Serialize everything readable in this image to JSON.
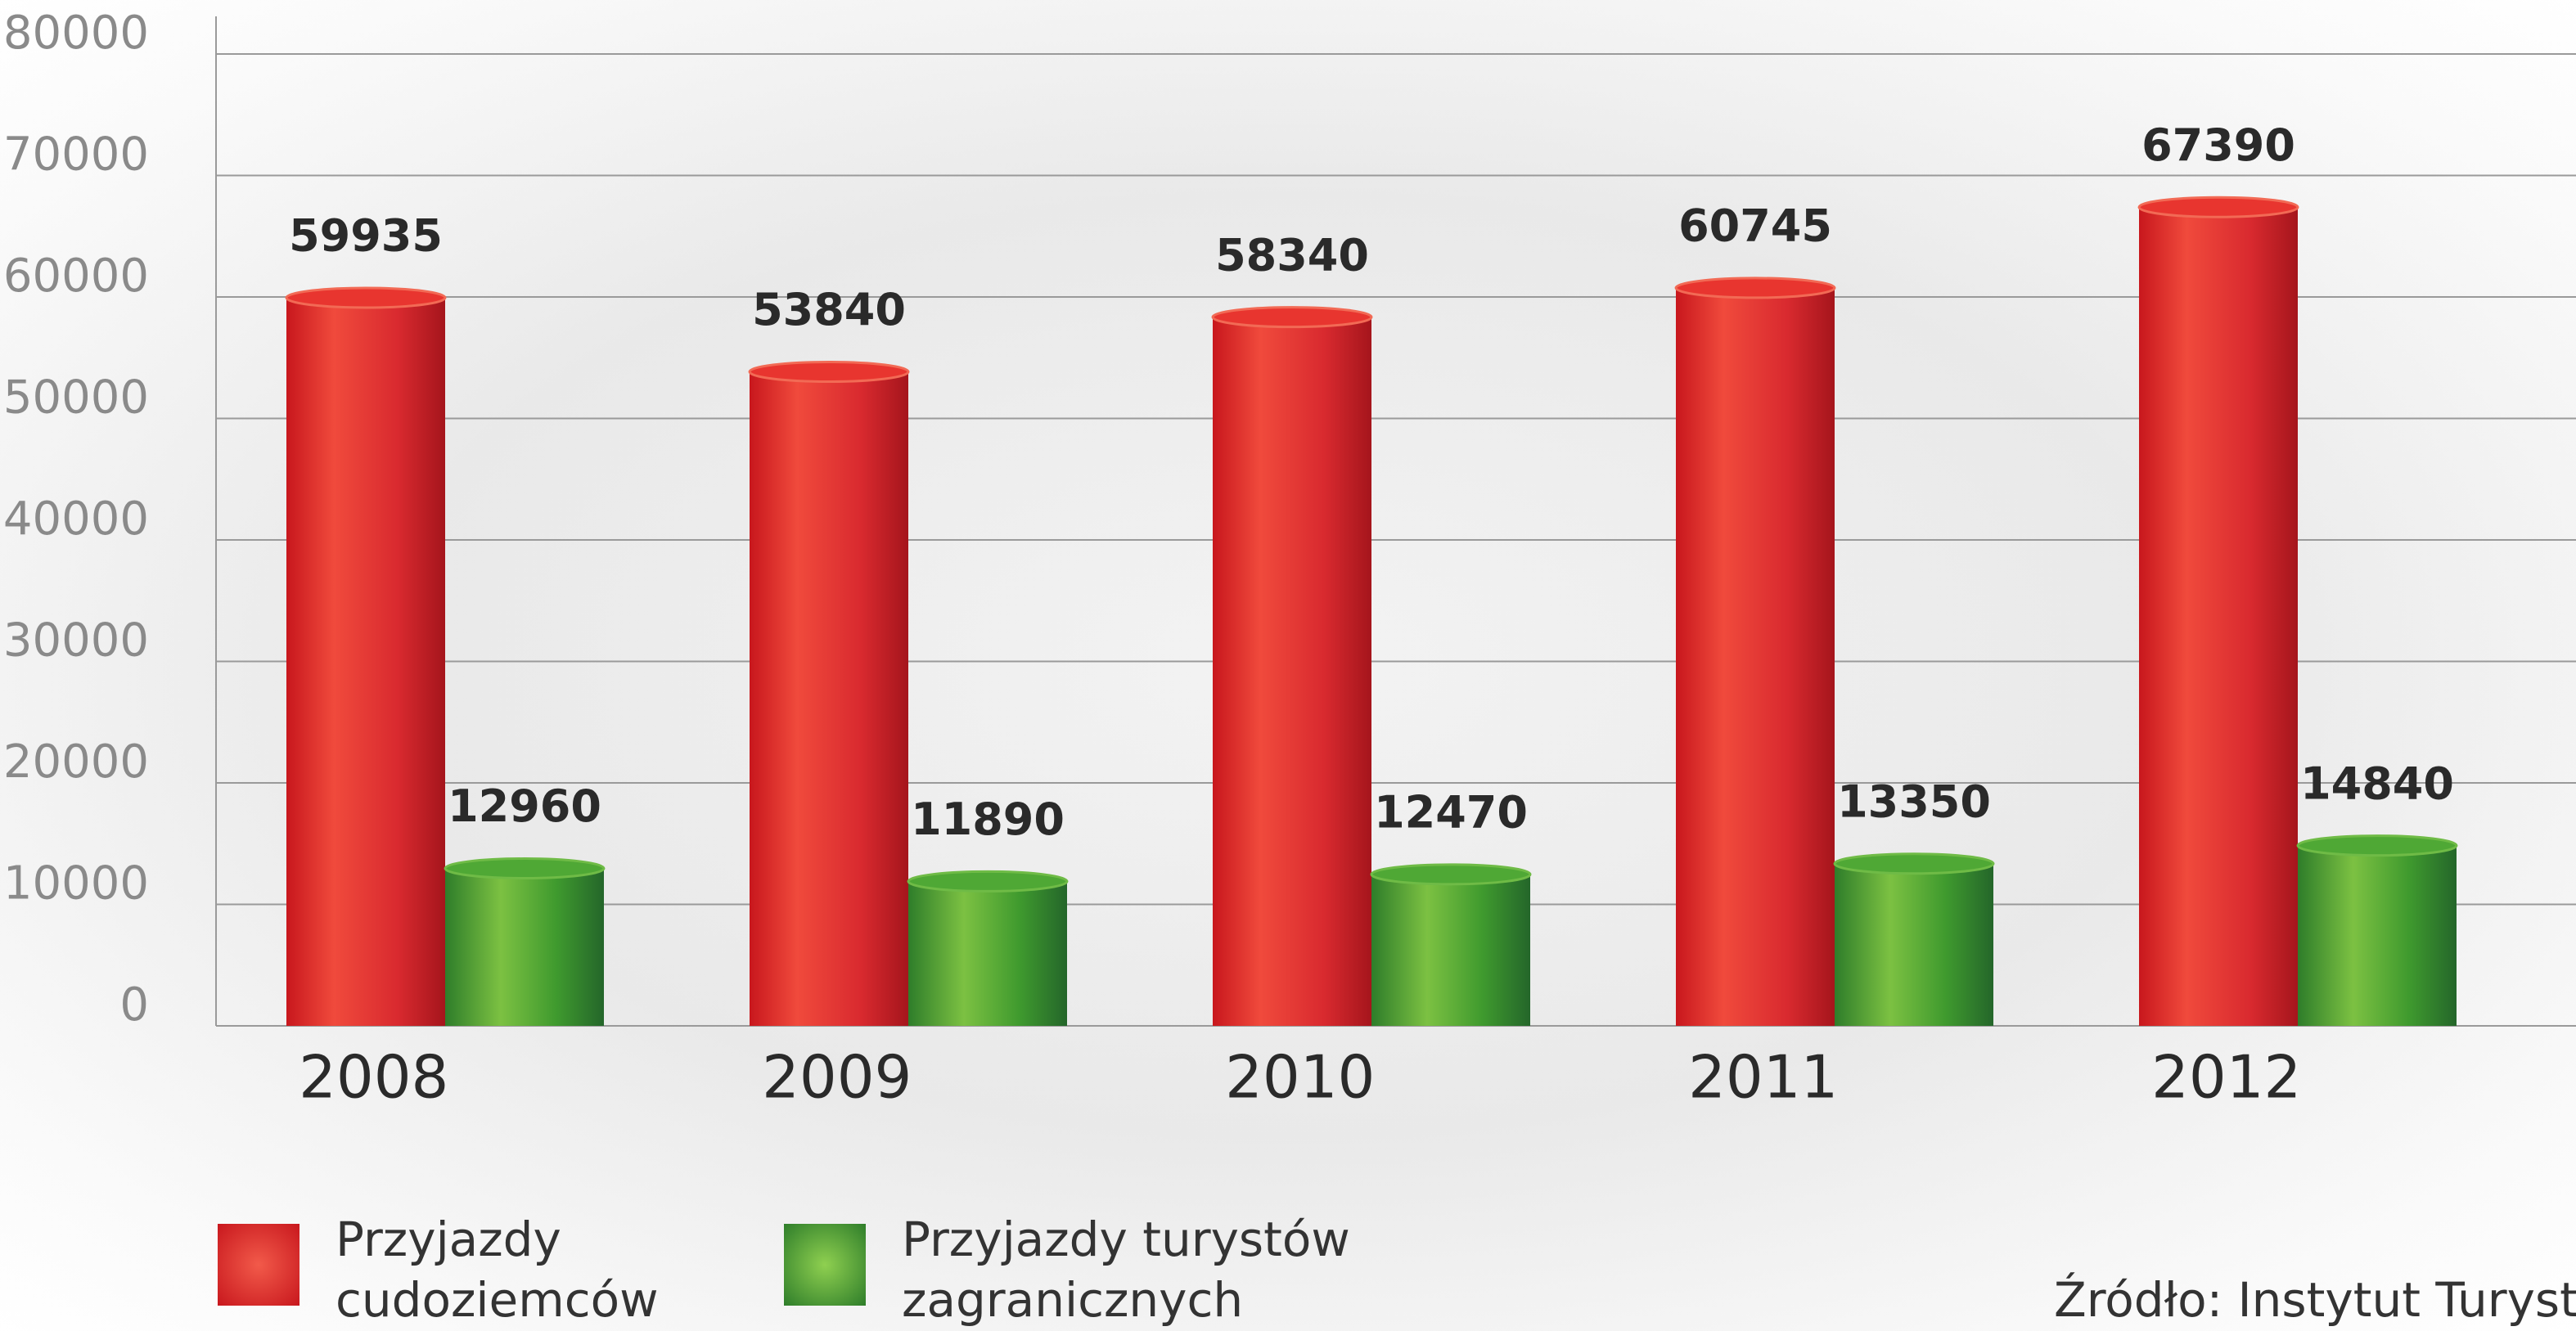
{
  "chart_data": {
    "type": "bar",
    "categories": [
      "2008",
      "2009",
      "2010",
      "2011",
      "2012"
    ],
    "series": [
      {
        "name": "Przyjazdy cudoziemców",
        "color": "#e0282e",
        "values": [
          59935,
          53840,
          58340,
          60745,
          67390
        ]
      },
      {
        "name": "Przyjazdy turystów zagranicznych",
        "color": "#3f9a2e",
        "values": [
          12960,
          11890,
          12470,
          13350,
          14840
        ]
      }
    ],
    "ylim": [
      0,
      80000
    ],
    "yticks": [
      0,
      10000,
      20000,
      30000,
      40000,
      50000,
      60000,
      70000,
      80000
    ],
    "grid": true,
    "legend": "bottom-left",
    "source": "Źródło: Instytut Turystyki"
  }
}
